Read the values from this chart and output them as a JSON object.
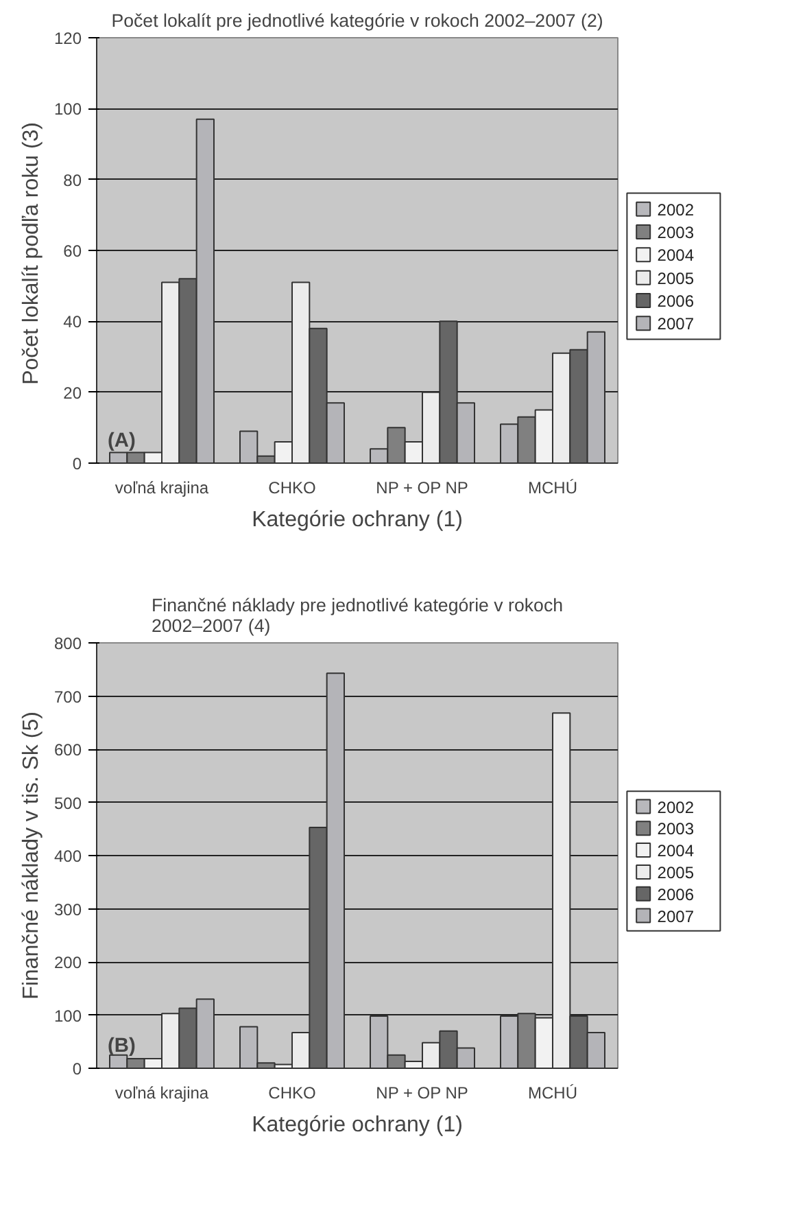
{
  "chart_data": [
    {
      "type": "bar",
      "title": "Počet lokalít pre jednotlivé kategórie v rokoch 2002–2007 (2)",
      "xlabel": "Kategórie ochrany (1)",
      "ylabel": "Počet lokalít podľa  roku (3)",
      "annotations": [
        "(A)"
      ],
      "categories": [
        "voľná krajina",
        "CHKO",
        "NP + OP NP",
        "MCHÚ"
      ],
      "series": [
        {
          "name": "2002",
          "color": "#b8b8bc",
          "values": [
            3,
            9,
            4,
            11
          ]
        },
        {
          "name": "2003",
          "color": "#808080",
          "values": [
            3,
            2,
            10,
            13
          ]
        },
        {
          "name": "2004",
          "color": "#f2f2f2",
          "values": [
            3,
            6,
            6,
            15
          ]
        },
        {
          "name": "2005",
          "color": "#ececec",
          "values": [
            51,
            51,
            20,
            31
          ]
        },
        {
          "name": "2006",
          "color": "#666666",
          "values": [
            52,
            38,
            40,
            32
          ]
        },
        {
          "name": "2007",
          "color": "#b4b4b8",
          "values": [
            97,
            17,
            17,
            37
          ]
        }
      ],
      "ylim": [
        0,
        120
      ],
      "yticks": [
        0,
        20,
        40,
        60,
        80,
        100,
        120
      ],
      "grid": "y",
      "legend": "right"
    },
    {
      "type": "bar",
      "title": "Finančné náklady pre jednotlivé kategórie v rokoch\n2002–2007 (4)",
      "xlabel": "Kategórie ochrany (1)",
      "ylabel": "Finančné náklady v tis. Sk (5)",
      "annotations": [
        "(B)"
      ],
      "categories": [
        "voľná krajina",
        "CHKO",
        "NP + OP NP",
        "MCHÚ"
      ],
      "series": [
        {
          "name": "2002",
          "color": "#b8b8bc",
          "values": [
            25,
            78,
            98,
            98
          ]
        },
        {
          "name": "2003",
          "color": "#808080",
          "values": [
            18,
            10,
            25,
            103
          ]
        },
        {
          "name": "2004",
          "color": "#f2f2f2",
          "values": [
            18,
            7,
            13,
            95
          ]
        },
        {
          "name": "2005",
          "color": "#ececec",
          "values": [
            103,
            67,
            48,
            668
          ]
        },
        {
          "name": "2006",
          "color": "#666666",
          "values": [
            113,
            453,
            70,
            98
          ]
        },
        {
          "name": "2007",
          "color": "#b4b4b8",
          "values": [
            130,
            743,
            38,
            67
          ]
        }
      ],
      "ylim": [
        0,
        800
      ],
      "yticks": [
        0,
        100,
        200,
        300,
        400,
        500,
        600,
        700,
        800
      ],
      "grid": "y",
      "legend": "right"
    }
  ]
}
